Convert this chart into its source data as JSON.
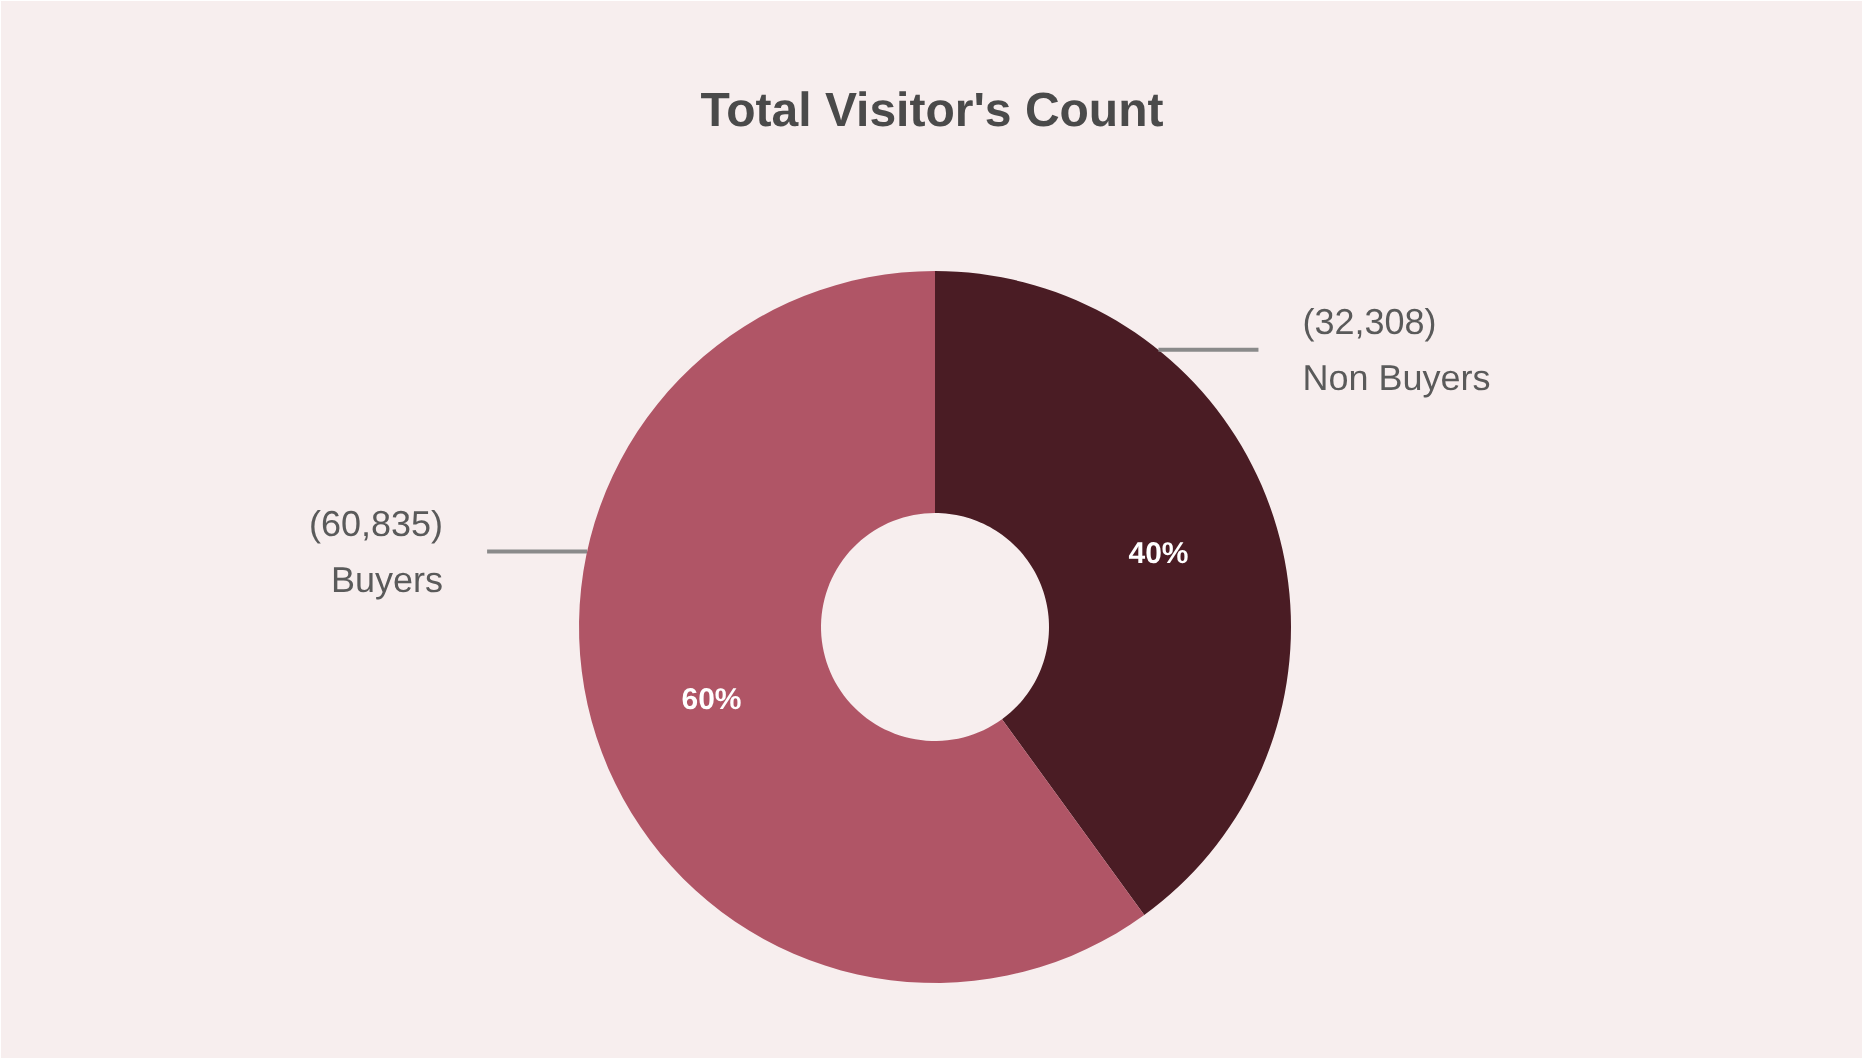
{
  "chart_data": {
    "type": "donut",
    "title": "Total Visitor's Count",
    "categories": [
      "Non Buyers",
      "Buyers"
    ],
    "values": [
      40,
      60
    ],
    "colors": [
      "#4a1c24",
      "#b05566"
    ],
    "value_labels": [
      "40%",
      "60%"
    ],
    "annotations": [
      "(32,308)",
      "(60,835)"
    ]
  }
}
